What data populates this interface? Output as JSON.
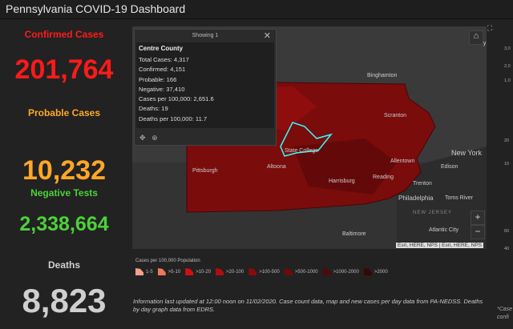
{
  "header": {
    "title": "Pennsylvania COVID-19 Dashboard"
  },
  "stats": [
    {
      "label": "Confirmed Cases",
      "value": "201,764",
      "color": "#ff1a1a"
    },
    {
      "label": "Probable Cases",
      "value": "10,232",
      "color": "#ffa726"
    },
    {
      "label": "Negative Tests",
      "value": "2,338,664",
      "color": "#4cd13a"
    },
    {
      "label": "Deaths",
      "value": "8,823",
      "color": "#cfcfcf"
    }
  ],
  "popup": {
    "header": "Showing 1",
    "title": "Centre County",
    "rows": [
      "Total Cases: 4,317",
      "Confirmed: 4,151",
      "Probable: 166",
      "Negative: 37,410",
      "Cases per 100,000: 2,651.6",
      "Deaths: 19",
      "Deaths per 100,000: 11.7"
    ]
  },
  "map": {
    "labels": [
      "Binghamton",
      "Scranton",
      "State College",
      "Pittsburgh",
      "Altoona",
      "Harrisburg",
      "Allentown",
      "Reading",
      "New York",
      "Edison",
      "Trenton",
      "Philadelphia",
      "Toms River",
      "Baltimore",
      "Atlantic City",
      "Albany",
      "NEW JERSEY"
    ],
    "attribution": "Esri, HERE, NPS | Esri, HERE, NPS"
  },
  "legend": {
    "title": "Cases per 100,000 Population",
    "items": [
      {
        "label": "1-5",
        "color": "#f4a08a"
      },
      {
        "label": ">5-10",
        "color": "#f0785a"
      },
      {
        "label": ">10-20",
        "color": "#d01010"
      },
      {
        "label": ">20-100",
        "color": "#b00d0d"
      },
      {
        "label": ">100-500",
        "color": "#8a0b0b"
      },
      {
        "label": ">500-1000",
        "color": "#6e0a0a"
      },
      {
        "label": ">1000-2000",
        "color": "#520808"
      },
      {
        "label": ">2000",
        "color": "#3a0606"
      }
    ]
  },
  "info": "Information last updated at 12:00 noon on 11/02/2020. Case count data, map and new cases per day data from PA-NEDSS.  Deaths by day graph data from EDRS.",
  "right_partial": {
    "ticks": [
      "3,0",
      "2,0",
      "1,0",
      "20",
      "10",
      "60",
      "40"
    ],
    "note": [
      "*Case",
      "confi"
    ]
  }
}
